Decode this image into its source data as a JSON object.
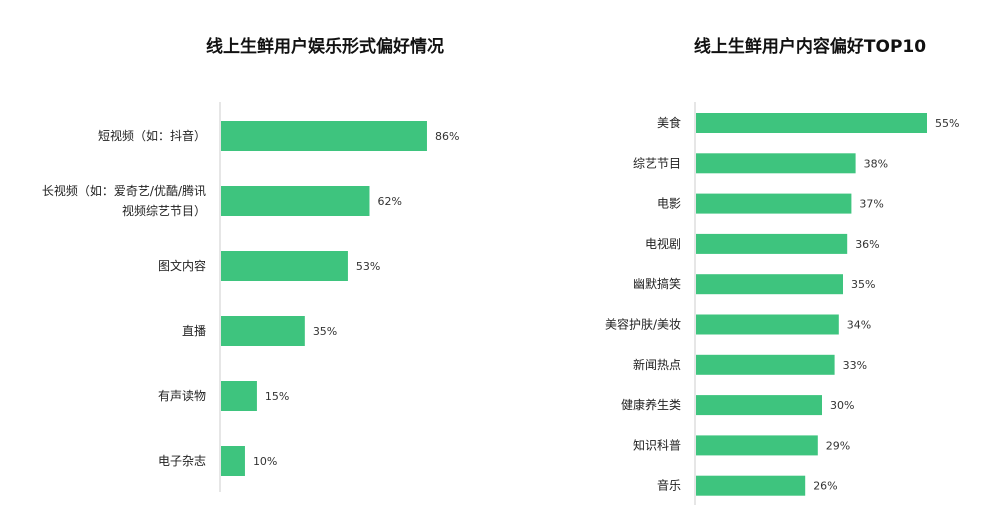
{
  "colors": {
    "bar": "#3ec47e",
    "axis": "#cccccc"
  },
  "chart_data": [
    {
      "type": "bar",
      "orientation": "horizontal",
      "title": "线上生鲜用户娱乐形式偏好情况",
      "categories": [
        [
          "短视频（如：抖音）"
        ],
        [
          "长视频（如：爱奇艺/优酷/腾讯",
          "视频综艺节目）"
        ],
        [
          "图文内容"
        ],
        [
          "直播"
        ],
        [
          "有声读物"
        ],
        [
          "电子杂志"
        ]
      ],
      "values": [
        86,
        62,
        53,
        35,
        15,
        10
      ],
      "value_labels": [
        "86%",
        "62%",
        "53%",
        "35%",
        "15%",
        "10%"
      ],
      "xlim": [
        0,
        100
      ],
      "grid": false,
      "legend": "none"
    },
    {
      "type": "bar",
      "orientation": "horizontal",
      "title": "线上生鲜用户内容偏好TOP10",
      "categories": [
        [
          "美食"
        ],
        [
          "综艺节目"
        ],
        [
          "电影"
        ],
        [
          "电视剧"
        ],
        [
          "幽默搞笑"
        ],
        [
          "美容护肤/美妆"
        ],
        [
          "新闻热点"
        ],
        [
          "健康养生类"
        ],
        [
          "知识科普"
        ],
        [
          "音乐"
        ]
      ],
      "values": [
        55,
        38,
        37,
        36,
        35,
        34,
        33,
        30,
        29,
        26
      ],
      "value_labels": [
        "55%",
        "38%",
        "37%",
        "36%",
        "35%",
        "34%",
        "33%",
        "30%",
        "29%",
        "26%"
      ],
      "xlim": [
        0,
        100
      ],
      "grid": false,
      "legend": "none"
    }
  ]
}
